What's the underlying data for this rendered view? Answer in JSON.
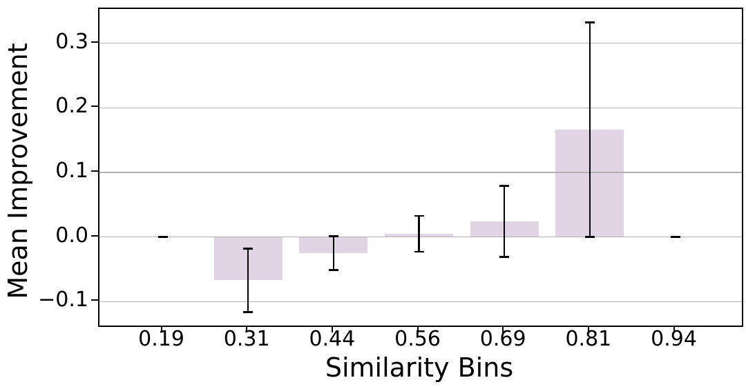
{
  "figure": {
    "title": "",
    "background_color": "#FFFFFF",
    "bar_color": "#E1D4E5",
    "grid_color": "#B0B0B0",
    "errorbar_color": "#000000",
    "spine_color": "#000000",
    "text_color": "#000000"
  },
  "chart_data": {
    "type": "bar",
    "title": "",
    "xlabel": "Similarity Bins",
    "ylabel": "Mean Improvement",
    "categories": [
      "0.19",
      "0.31",
      "0.44",
      "0.56",
      "0.69",
      "0.81",
      "0.94"
    ],
    "values": [
      0.0,
      -0.067,
      -0.025,
      0.005,
      0.024,
      0.166,
      0.0
    ],
    "errors": [
      0.0,
      0.049,
      0.026,
      0.028,
      0.055,
      0.166,
      0.0
    ],
    "error_low": [
      0.0,
      -0.116,
      -0.051,
      -0.023,
      -0.031,
      0.0,
      0.0
    ],
    "error_high": [
      0.0,
      -0.018,
      0.001,
      0.033,
      0.079,
      0.332,
      0.0
    ],
    "yticks": [
      0.3,
      0.2,
      0.1,
      0.0,
      -0.1
    ],
    "ytick_labels": [
      "0.3",
      "0.2",
      "0.1",
      "0.0",
      "−0.1"
    ],
    "ylim": [
      -0.137,
      0.353
    ],
    "xlim": [
      -0.74,
      6.78
    ],
    "bar_width_fraction": 0.8,
    "grid": "horizontal",
    "grid_above_bars": true,
    "legend": "none"
  }
}
